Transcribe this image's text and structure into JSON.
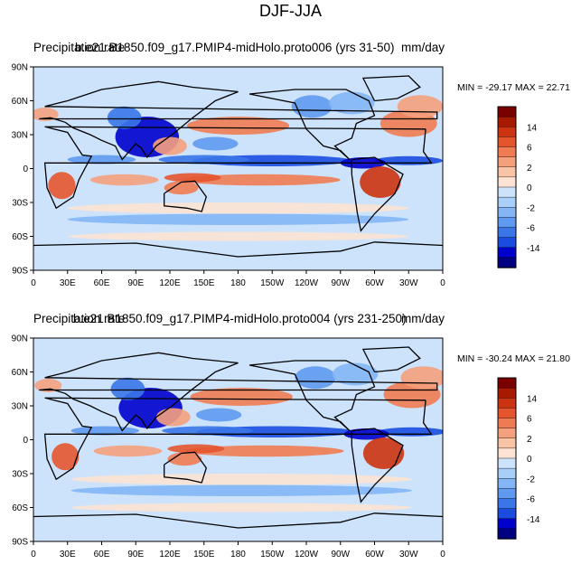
{
  "title": "DJF-JJA",
  "colors": {
    "neg": [
      "#000080",
      "#0000cc",
      "#1a4ce0",
      "#3a76e8",
      "#5f9af0",
      "#84b6f5",
      "#a9cff9",
      "#cde3fb"
    ],
    "pos": [
      "#fde3d3",
      "#f9c3a6",
      "#f5a07c",
      "#ef7b52",
      "#e4552d",
      "#cc3310",
      "#a81a00",
      "#7a0000"
    ]
  },
  "panels": [
    {
      "left_title": "Precipitation rate",
      "center_title": "b.e21.B1850.f09_g17.PMIP4-midHolo.proto006 (yrs 31-50)",
      "units": "mm/day",
      "min_label": "MIN =",
      "min_value": "-29.17",
      "max_label": "MAX =",
      "max_value": "22.71"
    },
    {
      "left_title": "Precipitation rate",
      "center_title": "b.e21.B1850.f09_g17.PIMP4-midHolo.proto004 (yrs 231-250)",
      "units": "mm/day",
      "min_label": "MIN =",
      "min_value": "-30.24",
      "max_label": "MAX =",
      "max_value": "21.80"
    }
  ],
  "lat_labels": [
    "90N",
    "60N",
    "30N",
    "0",
    "30S",
    "60S",
    "90S"
  ],
  "lon_labels": [
    "0",
    "30E",
    "60E",
    "90E",
    "120E",
    "150E",
    "180",
    "150W",
    "120W",
    "90W",
    "60W",
    "30W",
    "0"
  ],
  "colorbar_labels": [
    "14",
    "6",
    "2",
    "0",
    "-2",
    "-6",
    "-14"
  ]
}
